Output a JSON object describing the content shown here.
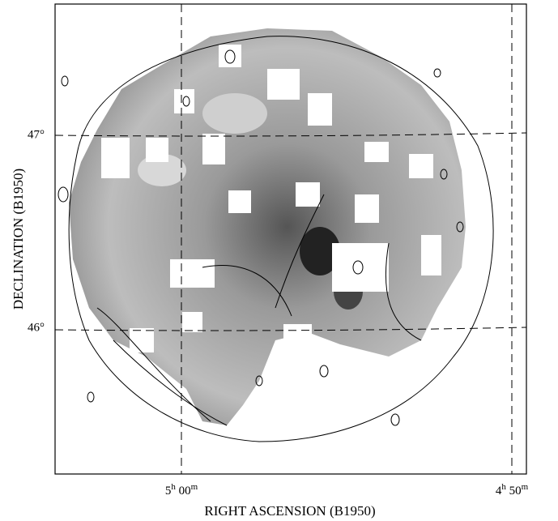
{
  "figure": {
    "x_label": "RIGHT ASCENSION (B1950)",
    "y_label": "DECLINATION (B1950)",
    "x_ticks": [
      {
        "parts": [
          "5",
          "h",
          " 00",
          "m"
        ]
      },
      {
        "parts": [
          "4",
          "h",
          " 50",
          "m"
        ]
      }
    ],
    "y_ticks": [
      "47°",
      "46°"
    ]
  }
}
